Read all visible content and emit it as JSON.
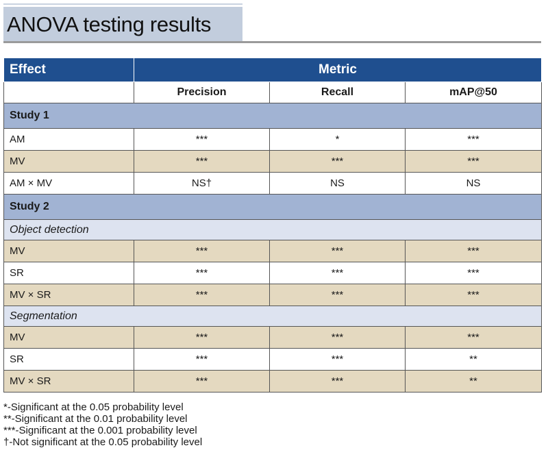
{
  "title": "ANOVA testing results",
  "table": {
    "header": {
      "effect": "Effect",
      "metric": "Metric"
    },
    "columns": [
      "Precision",
      "Recall",
      "mAP@50"
    ],
    "groups": [
      {
        "label": "Study 1",
        "sections": [
          {
            "label": "",
            "rows": [
              {
                "effect": "AM",
                "values": [
                  "***",
                  "*",
                  "***"
                ]
              },
              {
                "effect": "MV",
                "values": [
                  "***",
                  "***",
                  "***"
                ]
              },
              {
                "effect": "AM × MV",
                "values": [
                  "NS†",
                  "NS",
                  "NS"
                ]
              }
            ]
          }
        ]
      },
      {
        "label": "Study 2",
        "sections": [
          {
            "label": "Object detection",
            "rows": [
              {
                "effect": "MV",
                "values": [
                  "***",
                  "***",
                  "***"
                ]
              },
              {
                "effect": "SR",
                "values": [
                  "***",
                  "***",
                  "***"
                ]
              },
              {
                "effect": "MV × SR",
                "values": [
                  "***",
                  "***",
                  "***"
                ]
              }
            ]
          },
          {
            "label": "Segmentation",
            "rows": [
              {
                "effect": "MV",
                "values": [
                  "***",
                  "***",
                  "***"
                ]
              },
              {
                "effect": "SR",
                "values": [
                  "***",
                  "***",
                  "**"
                ]
              },
              {
                "effect": "MV × SR",
                "values": [
                  "***",
                  "***",
                  "**"
                ]
              }
            ]
          }
        ]
      }
    ]
  },
  "footnotes": [
    "*-Significant at the 0.05 probability level",
    "**-Significant at the 0.01 probability level",
    "***-Significant at the 0.001 probability level",
    "†-Not significant at the 0.05 probability level"
  ],
  "colors": {
    "header_blue": "#1f4f8f",
    "study_blue": "#a1b3d3",
    "section_lavender": "#dde3f0",
    "row_tan": "#e4d9c0"
  }
}
